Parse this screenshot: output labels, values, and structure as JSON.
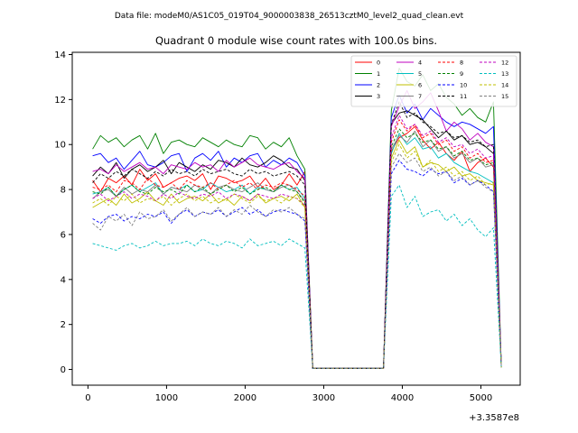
{
  "chart_data": {
    "type": "line",
    "suptitle": "Data file: modeM0/AS1C05_019T04_9000003838_26513cztM0_level2_quad_clean.evt",
    "title": "Quadrant 0 module wise count rates with 100.0s bins.",
    "xlabel": "",
    "ylabel": "",
    "x_offset_label": "+3.3587e8",
    "xlim": [
      -200,
      5500
    ],
    "ylim": [
      -0.7,
      14.1
    ],
    "x_ticks": [
      0,
      1000,
      2000,
      3000,
      4000,
      5000
    ],
    "x_tick_labels": [
      "0",
      "1000",
      "2000",
      "3000",
      "4000",
      "5000"
    ],
    "y_ticks": [
      0,
      2,
      4,
      6,
      8,
      10,
      12,
      14
    ],
    "y_tick_labels": [
      "0",
      "2",
      "4",
      "6",
      "8",
      "10",
      "12",
      "14"
    ],
    "legend_position": "top-right",
    "x": [
      60,
      160,
      260,
      360,
      460,
      560,
      660,
      760,
      860,
      960,
      1060,
      1160,
      1260,
      1360,
      1460,
      1560,
      1660,
      1760,
      1860,
      1960,
      2060,
      2160,
      2260,
      2360,
      2460,
      2560,
      2660,
      2760,
      2860,
      2960,
      3060,
      3160,
      3260,
      3360,
      3460,
      3560,
      3660,
      3760,
      3860,
      3960,
      4060,
      4160,
      4260,
      4360,
      4460,
      4560,
      4660,
      4760,
      4860,
      4960,
      5060,
      5160,
      5260
    ],
    "series": [
      {
        "name": "0",
        "color": "#ff0000",
        "dash": false,
        "values": [
          8.4,
          7.9,
          8.5,
          8.3,
          8.6,
          8.2,
          8.9,
          8.4,
          8.7,
          8.1,
          8.3,
          8.5,
          8.6,
          8.4,
          8.7,
          8.0,
          8.6,
          8.5,
          8.3,
          8.4,
          8.6,
          8.1,
          8.5,
          8.0,
          8.2,
          8.7,
          8.2,
          8.8,
          0.05,
          0.05,
          0.05,
          0.05,
          0.05,
          0.05,
          0.05,
          0.05,
          0.05,
          0.05,
          9.7,
          10.3,
          10.5,
          10.8,
          10.2,
          9.8,
          10.1,
          9.6,
          9.3,
          9.7,
          8.8,
          9.2,
          9.4,
          9.0,
          0.1
        ]
      },
      {
        "name": "1",
        "color": "#008000",
        "dash": false,
        "values": [
          9.8,
          10.4,
          10.1,
          10.3,
          9.9,
          10.2,
          10.4,
          9.8,
          10.5,
          9.6,
          10.1,
          10.2,
          10.0,
          9.9,
          10.3,
          10.1,
          9.9,
          10.2,
          10.0,
          9.9,
          10.4,
          10.3,
          9.8,
          10.1,
          9.9,
          10.3,
          9.5,
          8.9,
          0.05,
          0.05,
          0.05,
          0.05,
          0.05,
          0.05,
          0.05,
          0.05,
          0.05,
          0.05,
          11.5,
          13.4,
          12.8,
          12.6,
          13.1,
          12.4,
          12.7,
          12.1,
          11.8,
          11.3,
          11.6,
          11.2,
          11.0,
          11.9,
          0.1
        ]
      },
      {
        "name": "2",
        "color": "#0000ff",
        "dash": false,
        "values": [
          9.5,
          9.6,
          9.2,
          9.4,
          8.9,
          9.3,
          9.7,
          9.1,
          9.0,
          9.2,
          9.5,
          9.6,
          8.8,
          9.4,
          9.6,
          9.3,
          9.7,
          9.0,
          9.4,
          9.2,
          9.5,
          9.6,
          9.0,
          9.3,
          9.1,
          9.4,
          9.2,
          8.6,
          0.05,
          0.05,
          0.05,
          0.05,
          0.05,
          0.05,
          0.05,
          0.05,
          0.05,
          0.05,
          11.2,
          12.2,
          11.4,
          11.8,
          11.1,
          11.6,
          11.3,
          11.0,
          10.8,
          11.0,
          10.9,
          10.7,
          10.5,
          10.8,
          0.1
        ]
      },
      {
        "name": "3",
        "color": "#000000",
        "dash": false,
        "values": [
          8.6,
          9.0,
          8.7,
          9.2,
          8.5,
          8.9,
          9.1,
          8.8,
          9.0,
          9.3,
          8.7,
          9.2,
          9.0,
          8.8,
          9.1,
          8.9,
          9.3,
          9.2,
          9.0,
          9.4,
          9.1,
          9.0,
          9.2,
          9.5,
          9.3,
          9.0,
          8.9,
          8.4,
          0.05,
          0.05,
          0.05,
          0.05,
          0.05,
          0.05,
          0.05,
          0.05,
          0.05,
          0.05,
          10.9,
          11.4,
          11.5,
          11.3,
          11.1,
          10.7,
          10.3,
          10.6,
          10.2,
          10.4,
          10.0,
          10.1,
          9.9,
          9.6,
          0.1
        ]
      },
      {
        "name": "4",
        "color": "#bf00bf",
        "dash": false,
        "values": [
          8.8,
          8.9,
          8.7,
          9.1,
          8.8,
          9.0,
          9.2,
          8.9,
          9.0,
          8.7,
          9.1,
          9.0,
          8.9,
          9.2,
          9.0,
          9.1,
          8.8,
          9.3,
          9.0,
          9.2,
          9.4,
          9.1,
          9.0,
          8.9,
          9.1,
          9.2,
          8.8,
          8.5,
          0.05,
          0.05,
          0.05,
          0.05,
          0.05,
          0.05,
          0.05,
          0.05,
          0.05,
          0.05,
          10.8,
          11.7,
          12.4,
          11.6,
          11.9,
          12.3,
          11.5,
          10.6,
          11.0,
          10.7,
          10.2,
          10.5,
          10.1,
          9.9,
          0.1
        ]
      },
      {
        "name": "5",
        "color": "#00bfbf",
        "dash": false,
        "values": [
          7.8,
          7.9,
          8.1,
          7.7,
          8.0,
          8.2,
          7.9,
          8.1,
          8.3,
          7.8,
          8.1,
          8.0,
          8.2,
          7.9,
          8.0,
          8.3,
          8.1,
          7.9,
          8.0,
          8.2,
          7.8,
          8.1,
          8.0,
          7.9,
          8.2,
          8.0,
          8.1,
          7.6,
          0.05,
          0.05,
          0.05,
          0.05,
          0.05,
          0.05,
          0.05,
          0.05,
          0.05,
          0.05,
          9.6,
          10.5,
          10.0,
          10.3,
          9.8,
          9.9,
          9.4,
          9.6,
          9.2,
          9.0,
          8.8,
          8.7,
          8.5,
          8.3,
          0.1
        ]
      },
      {
        "name": "6",
        "color": "#bfbf00",
        "dash": false,
        "values": [
          7.2,
          7.4,
          7.6,
          7.3,
          7.8,
          7.4,
          7.6,
          7.9,
          7.5,
          7.3,
          7.8,
          7.4,
          7.6,
          7.7,
          7.5,
          7.8,
          7.4,
          7.6,
          7.3,
          7.7,
          7.5,
          7.8,
          7.4,
          7.6,
          7.7,
          7.5,
          7.8,
          7.2,
          0.05,
          0.05,
          0.05,
          0.05,
          0.05,
          0.05,
          0.05,
          0.05,
          0.05,
          0.05,
          9.4,
          10.2,
          9.6,
          9.9,
          9.0,
          9.2,
          9.1,
          8.8,
          9.0,
          8.6,
          8.7,
          8.4,
          8.3,
          8.2,
          0.1
        ]
      },
      {
        "name": "7",
        "color": "#808080",
        "dash": false,
        "values": [
          7.6,
          7.9,
          8.0,
          7.7,
          8.1,
          7.8,
          8.0,
          7.9,
          8.2,
          7.8,
          8.1,
          8.0,
          7.9,
          8.2,
          8.0,
          7.8,
          8.1,
          8.2,
          8.0,
          7.9,
          8.1,
          8.3,
          8.0,
          7.9,
          8.1,
          8.2,
          7.9,
          7.5,
          0.05,
          0.05,
          0.05,
          0.05,
          0.05,
          0.05,
          0.05,
          0.05,
          0.05,
          0.05,
          9.8,
          10.4,
          10.1,
          10.6,
          9.9,
          10.2,
          9.7,
          9.9,
          9.4,
          9.6,
          9.2,
          9.4,
          9.0,
          9.1,
          0.1
        ]
      },
      {
        "name": "8",
        "color": "#ff0000",
        "dash": true,
        "values": [
          8.1,
          8.0,
          8.2,
          7.9,
          8.4,
          8.3,
          8.0,
          8.5,
          8.2,
          8.1,
          8.3,
          8.0,
          8.4,
          8.2,
          8.1,
          8.3,
          8.0,
          8.2,
          8.4,
          8.1,
          8.3,
          8.0,
          8.2,
          8.1,
          8.3,
          8.2,
          8.0,
          7.7,
          0.05,
          0.05,
          0.05,
          0.05,
          0.05,
          0.05,
          0.05,
          0.05,
          0.05,
          0.05,
          10.1,
          11.1,
          10.6,
          10.9,
          10.3,
          10.5,
          10.0,
          10.2,
          9.7,
          9.9,
          9.4,
          9.6,
          9.2,
          9.3,
          0.1
        ]
      },
      {
        "name": "9",
        "color": "#008000",
        "dash": true,
        "values": [
          7.9,
          7.8,
          8.1,
          7.7,
          8.0,
          8.2,
          7.9,
          7.8,
          8.1,
          7.9,
          8.0,
          7.8,
          8.2,
          7.9,
          8.1,
          7.8,
          8.0,
          8.2,
          7.9,
          8.1,
          7.8,
          8.0,
          8.1,
          7.9,
          8.2,
          8.0,
          7.9,
          7.4,
          0.05,
          0.05,
          0.05,
          0.05,
          0.05,
          0.05,
          0.05,
          0.05,
          0.05,
          0.05,
          9.9,
          10.7,
          10.3,
          10.5,
          10.1,
          10.2,
          9.8,
          9.9,
          9.5,
          9.7,
          9.3,
          9.4,
          9.1,
          9.2,
          0.1
        ]
      },
      {
        "name": "10",
        "color": "#0000ff",
        "dash": true,
        "values": [
          6.7,
          6.5,
          6.8,
          6.9,
          6.6,
          6.8,
          6.7,
          6.9,
          6.8,
          7.0,
          6.5,
          6.9,
          7.1,
          6.8,
          7.0,
          6.9,
          7.1,
          6.8,
          7.0,
          7.2,
          6.9,
          7.1,
          6.8,
          7.0,
          7.1,
          7.0,
          6.9,
          6.6,
          0.05,
          0.05,
          0.05,
          0.05,
          0.05,
          0.05,
          0.05,
          0.05,
          0.05,
          0.05,
          8.7,
          9.3,
          8.9,
          8.8,
          8.6,
          8.9,
          8.7,
          8.8,
          8.3,
          8.5,
          8.2,
          8.4,
          8.2,
          7.9,
          0.1
        ]
      },
      {
        "name": "11",
        "color": "#000000",
        "dash": true,
        "values": [
          8.3,
          8.7,
          8.5,
          8.8,
          8.6,
          8.9,
          8.7,
          8.5,
          8.8,
          8.6,
          8.9,
          8.7,
          8.8,
          8.6,
          8.9,
          8.7,
          8.8,
          8.9,
          8.7,
          8.6,
          8.9,
          8.7,
          8.8,
          8.6,
          8.7,
          8.8,
          8.6,
          8.2,
          0.05,
          0.05,
          0.05,
          0.05,
          0.05,
          0.05,
          0.05,
          0.05,
          0.05,
          0.05,
          10.9,
          11.9,
          11.2,
          11.4,
          11.0,
          10.8,
          10.5,
          10.6,
          10.3,
          10.4,
          10.1,
          10.2,
          9.9,
          10.0,
          0.1
        ]
      },
      {
        "name": "12",
        "color": "#bf00bf",
        "dash": true,
        "values": [
          7.6,
          7.8,
          7.5,
          7.7,
          7.9,
          7.6,
          7.8,
          7.7,
          7.5,
          7.8,
          7.6,
          7.9,
          7.7,
          7.6,
          7.8,
          7.7,
          7.9,
          7.6,
          7.8,
          7.7,
          7.5,
          7.8,
          7.7,
          7.6,
          7.8,
          7.7,
          7.6,
          7.3,
          0.05,
          0.05,
          0.05,
          0.05,
          0.05,
          0.05,
          0.05,
          0.05,
          0.05,
          0.05,
          10.3,
          11.3,
          10.7,
          10.9,
          10.4,
          10.6,
          10.1,
          10.3,
          9.9,
          10.0,
          9.6,
          9.8,
          9.4,
          9.5,
          0.1
        ]
      },
      {
        "name": "13",
        "color": "#00bfbf",
        "dash": true,
        "values": [
          5.6,
          5.5,
          5.4,
          5.3,
          5.5,
          5.6,
          5.4,
          5.5,
          5.7,
          5.5,
          5.6,
          5.6,
          5.7,
          5.5,
          5.8,
          5.6,
          5.5,
          5.7,
          5.6,
          5.4,
          5.8,
          5.5,
          5.6,
          5.7,
          5.5,
          5.8,
          5.6,
          5.4,
          0.05,
          0.05,
          0.05,
          0.05,
          0.05,
          0.05,
          0.05,
          0.05,
          0.05,
          0.05,
          7.7,
          8.2,
          7.2,
          7.7,
          6.8,
          7.0,
          7.1,
          6.6,
          6.9,
          6.4,
          6.7,
          6.2,
          5.9,
          6.3,
          0.1
        ]
      },
      {
        "name": "14",
        "color": "#bfbf00",
        "dash": true,
        "values": [
          7.4,
          7.6,
          7.3,
          7.7,
          7.5,
          7.8,
          7.4,
          7.6,
          7.5,
          7.7,
          7.3,
          7.6,
          7.8,
          7.5,
          7.7,
          7.4,
          7.6,
          7.5,
          7.8,
          7.6,
          7.4,
          7.7,
          7.5,
          7.6,
          7.4,
          7.7,
          7.6,
          7.2,
          0.05,
          0.05,
          0.05,
          0.05,
          0.05,
          0.05,
          0.05,
          0.05,
          0.05,
          0.05,
          9.2,
          10.0,
          9.4,
          9.7,
          9.0,
          9.3,
          8.8,
          9.0,
          8.6,
          8.8,
          8.4,
          8.6,
          8.2,
          8.3,
          0.1
        ]
      },
      {
        "name": "15",
        "color": "#808080",
        "dash": true,
        "values": [
          6.5,
          6.2,
          6.8,
          6.6,
          6.9,
          6.4,
          7.0,
          6.7,
          6.8,
          7.1,
          6.6,
          6.9,
          7.2,
          6.8,
          7.0,
          6.9,
          7.2,
          6.8,
          7.1,
          6.9,
          7.3,
          7.0,
          6.8,
          7.1,
          7.0,
          7.2,
          6.9,
          6.7,
          0.05,
          0.05,
          0.05,
          0.05,
          0.05,
          0.05,
          0.05,
          0.05,
          0.05,
          0.05,
          9.0,
          9.6,
          9.2,
          9.4,
          8.8,
          9.0,
          8.6,
          8.8,
          8.4,
          8.6,
          8.2,
          8.4,
          8.1,
          7.9,
          0.1
        ]
      }
    ]
  }
}
